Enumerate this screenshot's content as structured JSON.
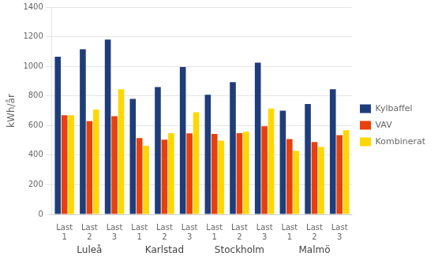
{
  "chart_data": {
    "type": "bar",
    "ylabel": "kWh/år",
    "categories": [
      "Last\n1",
      "Last\n2",
      "Last\n3",
      "Last\n1",
      "Last\n2",
      "Last\n3",
      "Last\n1",
      "Last\n2",
      "Last\n3",
      "Last\n1",
      "Last\n2",
      "Last\n3"
    ],
    "x_groups": [
      "Luleå",
      "Karlstad",
      "Stockholm",
      "Malmö"
    ],
    "series": [
      {
        "name": "Kylbaffel",
        "color": "#1F3D7A",
        "values": [
          1065,
          1115,
          1180,
          780,
          860,
          995,
          808,
          893,
          1025,
          700,
          745,
          845
        ]
      },
      {
        "name": "VAV",
        "color": "#E8400C",
        "values": [
          670,
          630,
          663,
          515,
          505,
          547,
          543,
          548,
          595,
          508,
          488,
          535
        ]
      },
      {
        "name": "Kombinerat",
        "color": "#FFD700",
        "values": [
          670,
          708,
          845,
          463,
          548,
          690,
          498,
          558,
          715,
          428,
          455,
          568
        ]
      }
    ],
    "ylim": [
      0,
      1400
    ],
    "yticks": [
      0,
      200,
      400,
      600,
      800,
      1000,
      1200,
      1400
    ],
    "grid": true,
    "legend": "right"
  }
}
